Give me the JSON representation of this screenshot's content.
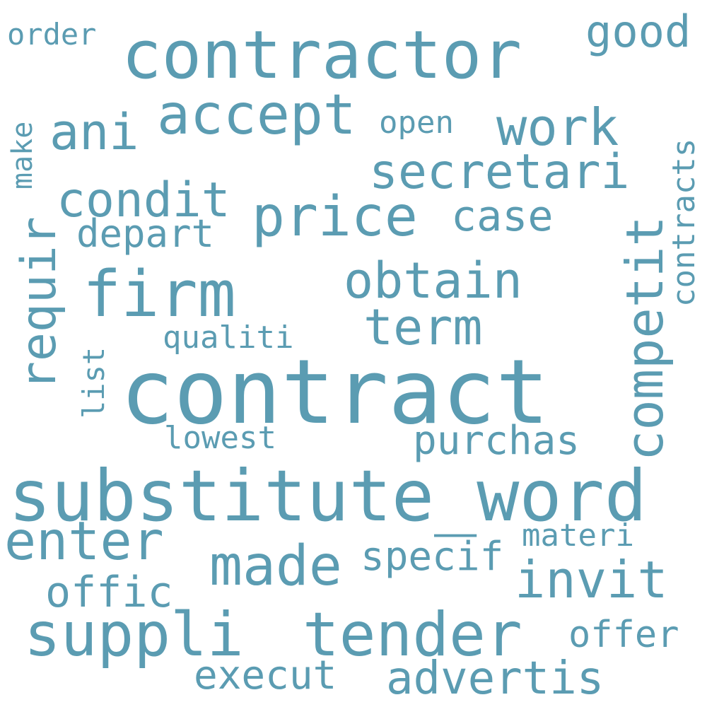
{
  "words": {
    "contract": "contract",
    "substitute_word": "substitute_word",
    "contractor": "contractor",
    "suppli": "suppli",
    "tender": "tender",
    "firm": "firm",
    "price": "price",
    "accept": "accept",
    "made": "made",
    "competit": "competit",
    "requir": "requir",
    "condit": "condit",
    "work": "work",
    "secretari": "secretari",
    "obtain": "obtain",
    "invit": "invit",
    "enter": "enter",
    "ani": "ani",
    "term": "term",
    "advertis": "advertis",
    "good": "good",
    "case": "case",
    "purchas": "purchas",
    "offic": "offic",
    "specif": "specif",
    "execut": "execut",
    "depart": "depart",
    "offer": "offer",
    "contracts": "contracts",
    "order": "order",
    "open": "open",
    "qualiti": "qualiti",
    "lowest": "lowest",
    "materi": "materi",
    "make": "make",
    "list": "list"
  },
  "colors": {
    "word": "#5b9cb2",
    "background": "#ffffff"
  }
}
